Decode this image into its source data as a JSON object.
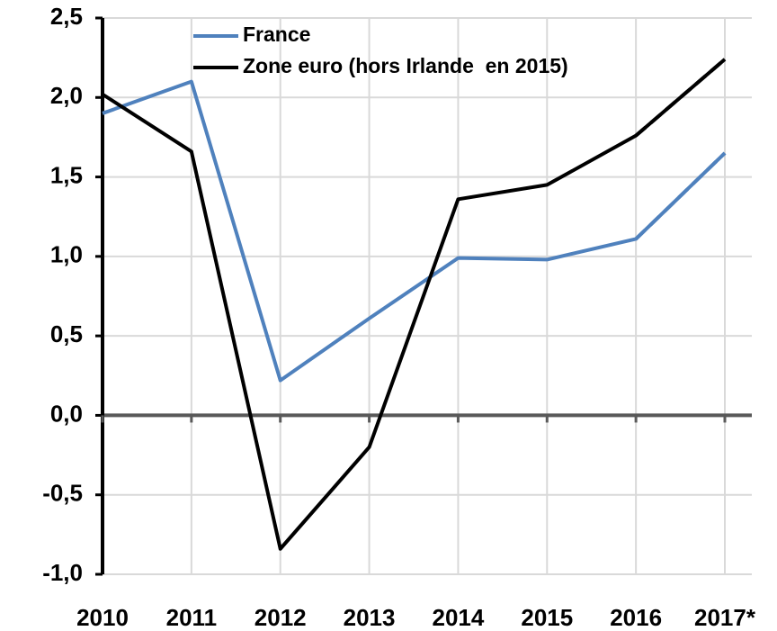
{
  "chart_data": {
    "type": "line",
    "categories": [
      "2010",
      "2011",
      "2012",
      "2013",
      "2014",
      "2015",
      "2016",
      "2017*"
    ],
    "series": [
      {
        "name": "France",
        "color": "#4f81bd",
        "values": [
          1.9,
          2.1,
          0.22,
          0.61,
          0.99,
          0.98,
          1.11,
          1.65
        ]
      },
      {
        "name": "Zone euro (hors Irlande  en 2015)",
        "color": "#000000",
        "values": [
          2.02,
          1.66,
          -0.84,
          -0.2,
          1.36,
          1.45,
          1.76,
          2.24
        ]
      }
    ],
    "ylim": [
      -1.0,
      2.5
    ],
    "yticks": [
      {
        "value": -1.0,
        "label": "-1,0"
      },
      {
        "value": -0.5,
        "label": "-0,5"
      },
      {
        "value": 0,
        "label": "0,0"
      },
      {
        "value": 0.5,
        "label": "0,5"
      },
      {
        "value": 1.0,
        "label": "1,0"
      },
      {
        "value": 1.5,
        "label": "1,5"
      },
      {
        "value": 2.0,
        "label": "2,0"
      },
      {
        "value": 2.5,
        "label": "2,5"
      }
    ],
    "grid": true,
    "dash_last": true
  }
}
